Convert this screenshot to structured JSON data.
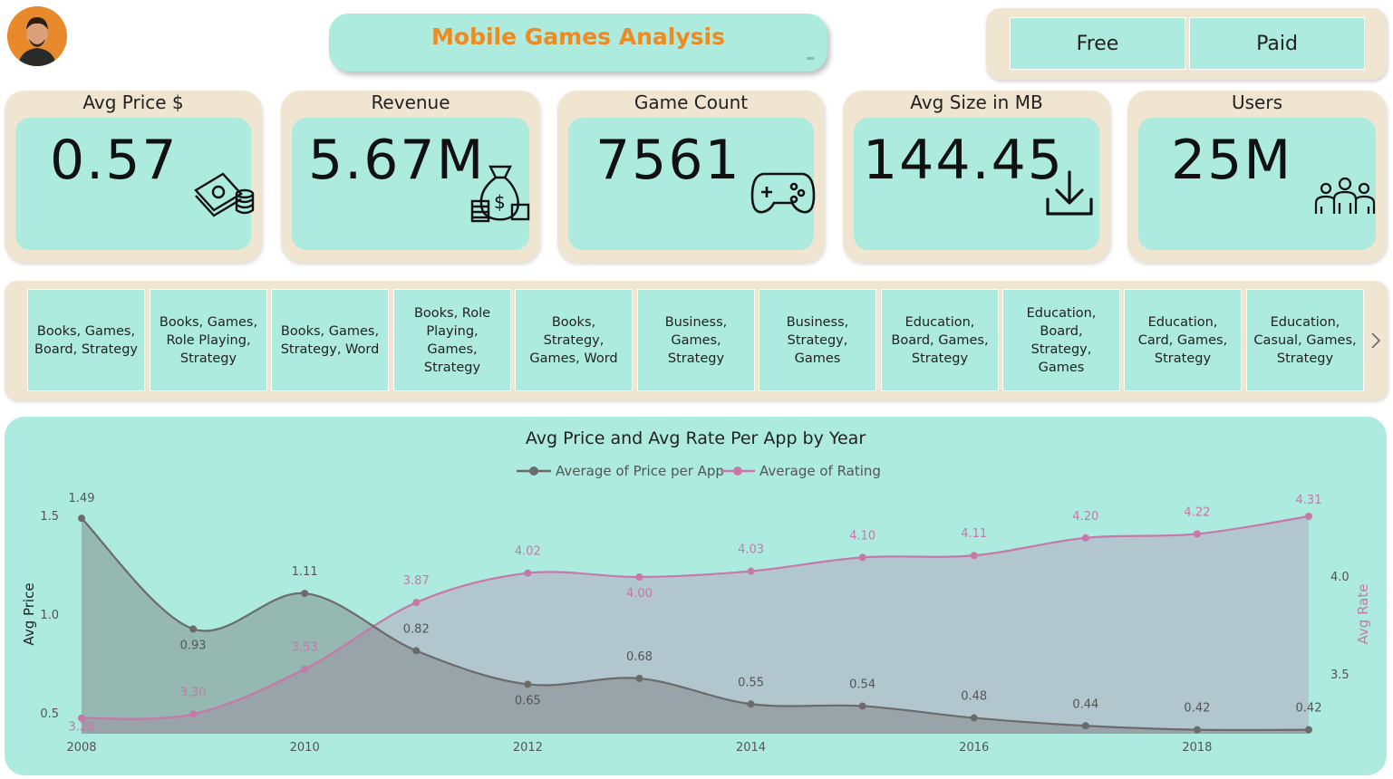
{
  "header": {
    "title": "Mobile Games Analysis",
    "avatar_icon": "user-avatar"
  },
  "filters": {
    "free_label": "Free",
    "paid_label": "Paid"
  },
  "kpis": [
    {
      "label": "Avg Price $",
      "value": "0.57",
      "icon": "money-stack-icon"
    },
    {
      "label": "Revenue",
      "value": "5.67M",
      "icon": "money-bag-icon"
    },
    {
      "label": "Game Count",
      "value": "7561",
      "icon": "gamepad-icon"
    },
    {
      "label": "Avg Size in MB",
      "value": "144.45",
      "icon": "download-icon"
    },
    {
      "label": "Users",
      "value": "25M",
      "icon": "users-icon"
    }
  ],
  "genres": [
    "Books, Games, Board, Strategy",
    "Books, Games, Role Playing, Strategy",
    "Books, Games, Strategy, Word",
    "Books, Role Playing, Games, Strategy",
    "Books, Strategy, Games, Word",
    "Business, Games, Strategy",
    "Business, Strategy, Games",
    "Education, Board, Games, Strategy",
    "Education, Board, Strategy, Games",
    "Education, Card, Games, Strategy",
    "Education, Casual, Games, Strategy"
  ],
  "colors": {
    "teal": "#acebdd",
    "beige": "#efe5d0",
    "orange": "#ee8a22",
    "price_line": "#6b6b6b",
    "rating_line": "#c878a8"
  },
  "chart_data": {
    "type": "area",
    "title": "Avg Price and Avg Rate Per App by Year",
    "ylabel": "Avg Price",
    "y2label": "Avg Rate",
    "x": [
      2008,
      2009,
      2010,
      2011,
      2012,
      2013,
      2014,
      2015,
      2016,
      2017,
      2018,
      2019
    ],
    "x_ticks": [
      "2008",
      "2010",
      "2012",
      "2014",
      "2016",
      "2018"
    ],
    "y_ticks": [
      "0.5",
      "1.0",
      "1.5"
    ],
    "y2_ticks": [
      "3.5",
      "4.0"
    ],
    "ylim": [
      0.4,
      1.5
    ],
    "y2lim": [
      3.2,
      4.31
    ],
    "legend": "top-center",
    "series": [
      {
        "name": "Average of Price per App",
        "axis": "left",
        "values": [
          1.49,
          0.93,
          1.11,
          0.82,
          0.65,
          0.68,
          0.55,
          0.54,
          0.48,
          0.44,
          0.42,
          0.42
        ],
        "labels": [
          "1.49",
          "0.93",
          "1.11",
          "0.82",
          "0.65",
          "0.68",
          "0.55",
          "0.54",
          "0.48",
          "0.44",
          "0.42",
          "0.42"
        ]
      },
      {
        "name": "Average of Rating",
        "axis": "right",
        "values": [
          3.28,
          3.3,
          3.53,
          3.87,
          4.02,
          4.0,
          4.03,
          4.1,
          4.11,
          4.2,
          4.22,
          4.31
        ],
        "labels": [
          "3.28",
          "3.30",
          "3.53",
          "3.87",
          "4.02",
          "4.00",
          "4.03",
          "4.10",
          "4.11",
          "4.20",
          "4.22",
          "4.31"
        ]
      }
    ]
  }
}
